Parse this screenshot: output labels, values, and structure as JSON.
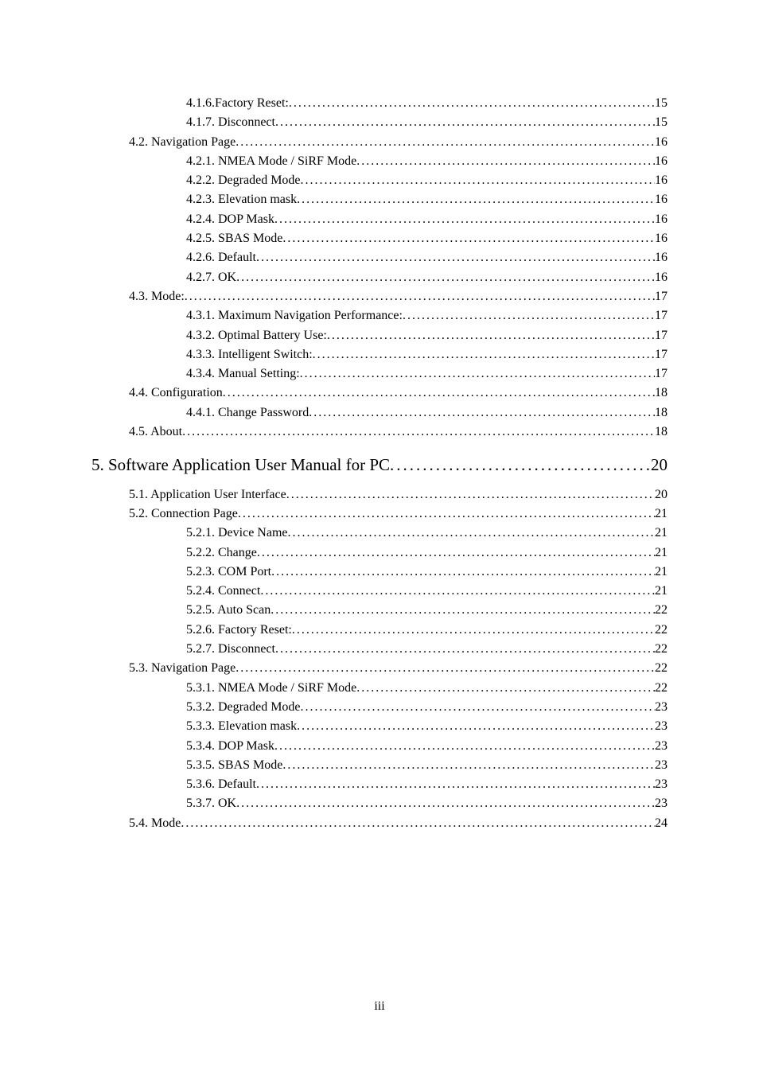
{
  "footer": "iii",
  "entries": [
    {
      "level": 3,
      "text": "4.1.6.Factory Reset: ",
      "page": "15"
    },
    {
      "level": 3,
      "text": "4.1.7. Disconnect",
      "page": "15"
    },
    {
      "level": 2,
      "text": "4.2. Navigation Page ",
      "page": "16"
    },
    {
      "level": 3,
      "text": "4.2.1. NMEA Mode / SiRF Mode ",
      "page": "16"
    },
    {
      "level": 3,
      "text": "4.2.2. Degraded Mode",
      "page": "16"
    },
    {
      "level": 3,
      "text": "4.2.3. Elevation mask",
      "page": "16"
    },
    {
      "level": 3,
      "text": "4.2.4. DOP Mask",
      "page": "16"
    },
    {
      "level": 3,
      "text": "4.2.5. SBAS Mode ",
      "page": "16"
    },
    {
      "level": 3,
      "text": "4.2.6. Default",
      "page": "16"
    },
    {
      "level": 3,
      "text": "4.2.7. OK",
      "page": "16"
    },
    {
      "level": 2,
      "text": "4.3. Mode: ",
      "page": "17"
    },
    {
      "level": 3,
      "text": "4.3.1. Maximum Navigation Performance:",
      "page": "17"
    },
    {
      "level": 3,
      "text": "4.3.2. Optimal Battery Use: ",
      "page": "17"
    },
    {
      "level": 3,
      "text": "4.3.3. Intelligent Switch:",
      "page": "17"
    },
    {
      "level": 3,
      "text": "4.3.4. Manual Setting:",
      "page": "17"
    },
    {
      "level": 2,
      "text": "4.4. Configuration ",
      "page": "18"
    },
    {
      "level": 3,
      "text": "4.4.1. Change Password ",
      "page": "18"
    },
    {
      "level": 2,
      "text": "4.5. About",
      "page": "18"
    },
    {
      "level": 1,
      "text": "5. Software Application User Manual for PC ",
      "page": " 20"
    },
    {
      "level": 2,
      "text": "5.1. Application User Interface ",
      "page": "20"
    },
    {
      "level": 2,
      "text": "5.2. Connection Page ",
      "page": "21"
    },
    {
      "level": 3,
      "text": "5.2.1. Device Name",
      "page": "21"
    },
    {
      "level": 3,
      "text": "5.2.2. Change ",
      "page": "21"
    },
    {
      "level": 3,
      "text": "5.2.3. COM Port",
      "page": "21"
    },
    {
      "level": 3,
      "text": "5.2.4. Connect ",
      "page": "21"
    },
    {
      "level": 3,
      "text": "5.2.5. Auto Scan ",
      "page": "22"
    },
    {
      "level": 3,
      "text": "5.2.6. Factory Reset: ",
      "page": "22"
    },
    {
      "level": 3,
      "text": "5.2.7. Disconnect",
      "page": "22"
    },
    {
      "level": 2,
      "text": "5.3. Navigation Page ",
      "page": "22"
    },
    {
      "level": 3,
      "text": "5.3.1. NMEA Mode / SiRF Mode ",
      "page": "22"
    },
    {
      "level": 3,
      "text": "5.3.2. Degraded Mode",
      "page": "23"
    },
    {
      "level": 3,
      "text": "5.3.3. Elevation mask",
      "page": "23"
    },
    {
      "level": 3,
      "text": "5.3.4. DOP Mask",
      "page": "23"
    },
    {
      "level": 3,
      "text": "5.3.5. SBAS Mode ",
      "page": "23"
    },
    {
      "level": 3,
      "text": "5.3.6. Default",
      "page": "23"
    },
    {
      "level": 3,
      "text": "5.3.7. OK",
      "page": "23"
    },
    {
      "level": 2,
      "text": "5.4. Mode ",
      "page": "24"
    }
  ]
}
